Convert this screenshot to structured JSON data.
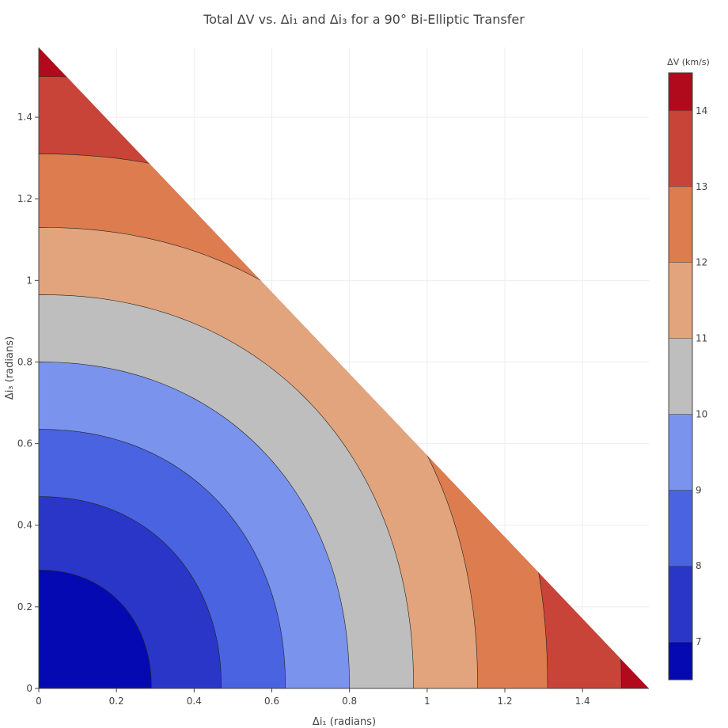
{
  "chart_data": {
    "type": "contour",
    "title": "Total ΔV vs. Δi₁ and Δi₃ for a 90° Bi-Elliptic Transfer",
    "xlabel": "Δi₁ (radians)",
    "ylabel": "Δi₃ (radians)",
    "xlim": [
      0,
      1.5708
    ],
    "ylim": [
      0,
      1.5708
    ],
    "x_ticks": [
      0,
      0.2,
      0.4,
      0.6,
      0.8,
      1,
      1.2,
      1.4
    ],
    "x_tick_labels": [
      "0",
      "0.2",
      "0.4",
      "0.6",
      "0.8",
      "1",
      "1.2",
      "1.4"
    ],
    "y_ticks": [
      0,
      0.2,
      0.4,
      0.6,
      0.8,
      1,
      1.2,
      1.4
    ],
    "y_tick_labels": [
      "0",
      "0.2",
      "0.4",
      "0.6",
      "0.8",
      "1",
      "1.2",
      "1.4"
    ],
    "grid": true,
    "domain_constraint": "Δi₁ + Δi₃ ≤ 90° (π/2 rad)",
    "colorbar": {
      "title": "ΔV (km/s)",
      "range": [
        6.5,
        14.5
      ],
      "ticks": [
        7,
        8,
        9,
        10,
        11,
        12,
        13,
        14
      ],
      "tick_labels": [
        "7",
        "8",
        "9",
        "10",
        "11",
        "12",
        "13",
        "14"
      ],
      "levels": [
        {
          "from": 6.5,
          "to": 7,
          "color": "#0509b1"
        },
        {
          "from": 7,
          "to": 8,
          "color": "#2936c7"
        },
        {
          "from": 8,
          "to": 9,
          "color": "#4a63e0"
        },
        {
          "from": 9,
          "to": 10,
          "color": "#7a93ec"
        },
        {
          "from": 10,
          "to": 11,
          "color": "#bebebe"
        },
        {
          "from": 11,
          "to": 12,
          "color": "#e1a47d"
        },
        {
          "from": 12,
          "to": 13,
          "color": "#dd7c4f"
        },
        {
          "from": 13,
          "to": 14,
          "color": "#c84438"
        },
        {
          "from": 14,
          "to": 14.5,
          "color": "#b10a1c"
        }
      ]
    },
    "contour_lines": [
      {
        "level": 7,
        "x_intercept": 0.29,
        "y_intercept": 0.29
      },
      {
        "level": 8,
        "x_intercept": 0.47,
        "y_intercept": 0.47
      },
      {
        "level": 9,
        "x_intercept": 0.635,
        "y_intercept": 0.635
      },
      {
        "level": 10,
        "x_intercept": 0.8,
        "y_intercept": 0.8
      },
      {
        "level": 11,
        "x_intercept": 0.965,
        "y_intercept": 0.965
      },
      {
        "level": 12,
        "x_intercept": 1.13,
        "y_intercept": 1.13
      },
      {
        "level": 13,
        "x_intercept": 1.31,
        "y_intercept": 1.31
      },
      {
        "level": 14,
        "x_intercept": 1.5,
        "y_intercept": 1.5
      }
    ]
  }
}
